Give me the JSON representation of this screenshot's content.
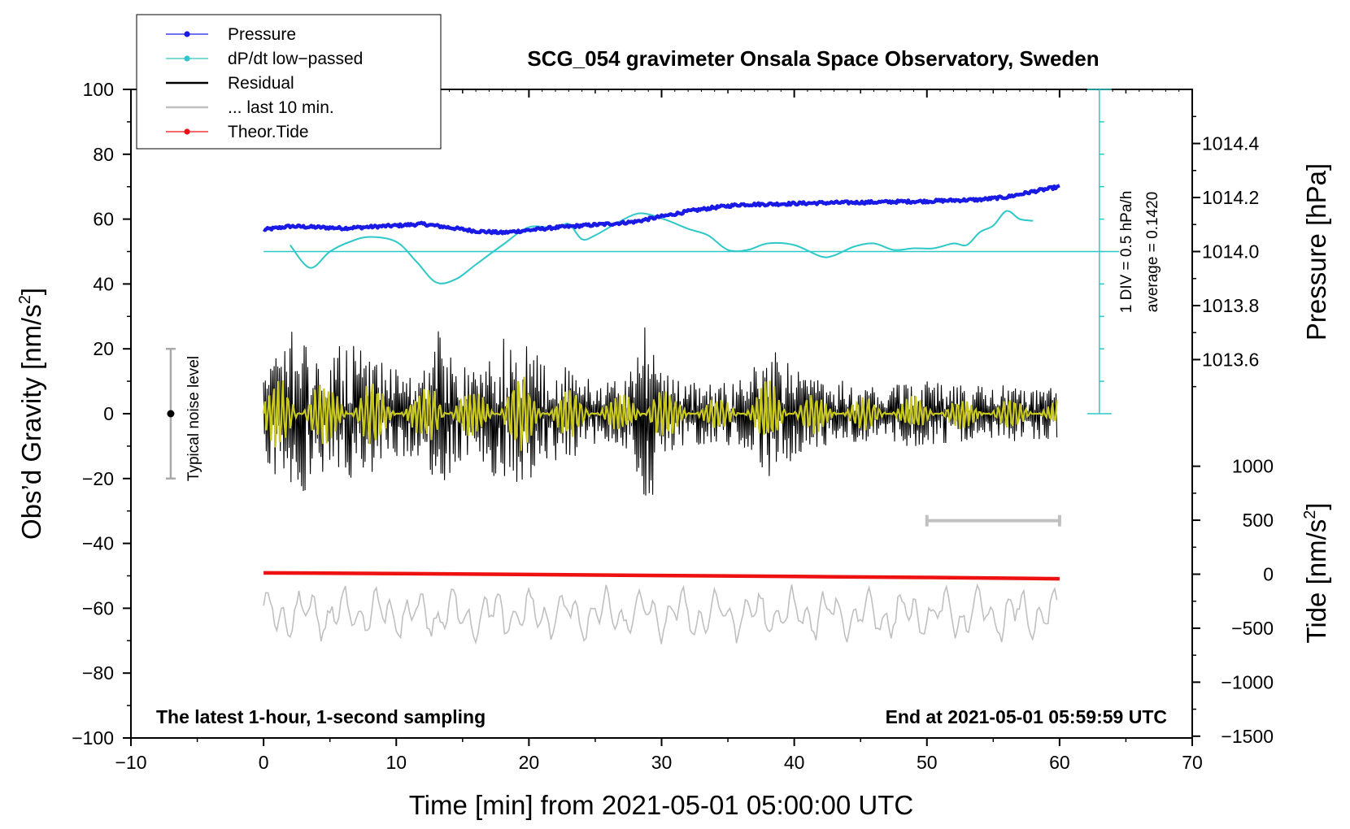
{
  "chart_data": {
    "type": "line",
    "title": "SCG_054 gravimeter Onsala Space Observatory, Sweden",
    "footer_left": "The latest 1-hour, 1-second sampling",
    "footer_right": "End at 2021-05-01 05:59:59 UTC",
    "xlabel": "Time [min] from 2021-05-01 05:00:00 UTC",
    "ylabel_left_main": "Obs’d Gravity [nm/s",
    "ylabel_left_sup": "2",
    "ylabel_left_close": "]",
    "ylabel_pressure": "Pressure [hPa]",
    "ylabel_tide_main": "Tide [nm/s",
    "ylabel_tide_sup": "2",
    "ylabel_tide_close": "]",
    "xlim": [
      -10,
      70
    ],
    "ylim": [
      -100,
      100
    ],
    "x_ticks": [
      "−10",
      "0",
      "10",
      "20",
      "30",
      "40",
      "50",
      "60",
      "70"
    ],
    "x_tick_values": [
      -10,
      0,
      10,
      20,
      30,
      40,
      50,
      60,
      70
    ],
    "y_ticks": [
      "100",
      "80",
      "60",
      "40",
      "20",
      "0",
      "−20",
      "−40",
      "−60",
      "−80",
      "−100"
    ],
    "y_tick_values": [
      100,
      80,
      60,
      40,
      20,
      0,
      -20,
      -40,
      -60,
      -80,
      -100
    ],
    "pressure_axis": {
      "ticks": [
        "1014.4",
        "1014.2",
        "1014.0",
        "1013.8",
        "1013.6"
      ],
      "values": [
        1014.4,
        1014.2,
        1014.0,
        1013.8,
        1013.6
      ],
      "gravity_at_1014": 50,
      "gravity_per_hPa": 83.3
    },
    "tide_axis": {
      "ticks": [
        "1000",
        "500",
        "0",
        "−500",
        "−1000",
        "−1500"
      ],
      "values": [
        1000,
        500,
        0,
        -500,
        -1000,
        -1500
      ],
      "gravity_at_zero": -49.5,
      "gravity_per_nms2": 0.0333
    },
    "dpdt_scale": {
      "label_div": "1 DIV = 0.5 hPa/h",
      "label_avg": "average = 0.1420",
      "x": 63,
      "y_top": 100,
      "y_bottom": 0,
      "baseline": 50
    },
    "noise_marker": {
      "label": "Typical noise level",
      "x": -7,
      "center": 0,
      "low": -20,
      "high": 20
    },
    "last10_bar": {
      "x_start": 50,
      "x_end": 60,
      "y": -33
    },
    "legend": [
      {
        "label": "Pressure",
        "color": "#1a1ae6",
        "style": "line-dot"
      },
      {
        "label": "dP/dt low−passed",
        "color": "#2ec8c8",
        "style": "line-dot"
      },
      {
        "label": "Residual",
        "color": "#000000",
        "style": "line"
      },
      {
        "label": "... last 10 min.",
        "color": "#c0c0c0",
        "style": "line"
      },
      {
        "label": "Theor.Tide",
        "color": "#ee1111",
        "style": "line-dot"
      }
    ],
    "series": [
      {
        "name": "Pressure",
        "color": "#1a1ae6",
        "x": [
          0,
          2,
          4,
          6,
          8,
          10,
          12,
          14,
          16,
          18,
          20,
          22,
          24,
          26,
          28,
          30,
          32,
          34,
          36,
          38,
          40,
          42,
          44,
          46,
          48,
          50,
          52,
          54,
          56,
          58,
          60
        ],
        "y": [
          56.7,
          57.8,
          57.5,
          57.2,
          57.6,
          58.0,
          58.5,
          57.4,
          56.3,
          55.8,
          56.6,
          57.4,
          58.0,
          58.5,
          59.2,
          60.8,
          62.4,
          63.6,
          64.5,
          64.6,
          64.8,
          65.0,
          65.1,
          65.2,
          65.4,
          65.5,
          65.8,
          66.0,
          66.8,
          68.5,
          70.0
        ]
      },
      {
        "name": "dP/dt low−passed",
        "color": "#2ec8c8",
        "x": [
          2,
          3.5,
          5,
          6.5,
          8,
          10,
          11.5,
          13,
          14.5,
          16,
          18,
          20,
          22,
          23,
          24,
          25,
          26.5,
          28,
          29,
          30.5,
          32,
          33.5,
          35,
          36.5,
          38,
          40,
          42,
          43,
          44.5,
          46,
          47.5,
          49,
          50.5,
          52,
          53,
          54,
          55,
          56,
          57,
          58
        ],
        "y": [
          52,
          45,
          50,
          53,
          54.5,
          53,
          47,
          40.5,
          41.5,
          46,
          52,
          57.5,
          57.2,
          58.5,
          53.8,
          55,
          58.5,
          61.5,
          61.5,
          59.5,
          57,
          55,
          50.5,
          50.5,
          52.5,
          52,
          48.5,
          48.8,
          51.5,
          52.5,
          50.5,
          51,
          51,
          52.5,
          52,
          56,
          58,
          62.5,
          60,
          59.5
        ]
      },
      {
        "name": "Residual",
        "color": "#000000",
        "x_start": 0,
        "x_end": 59.8,
        "samples": 900,
        "envelope_x": [
          0,
          1,
          2,
          2.7,
          3.5,
          5,
          6,
          8,
          10,
          12,
          13.3,
          14.5,
          16,
          17,
          18,
          20,
          21,
          23,
          25,
          27,
          28,
          29,
          30,
          32,
          34,
          36,
          37,
          38.5,
          40,
          42,
          44,
          46,
          48,
          50,
          52,
          54,
          56,
          58,
          60
        ],
        "envelope_y": [
          13,
          21,
          25,
          30,
          22,
          17,
          25,
          19,
          14,
          13,
          28,
          16,
          13,
          19,
          24,
          21,
          18,
          14,
          10,
          11,
          17,
          33,
          14,
          10,
          9,
          11,
          15,
          21,
          14,
          11,
          10,
          9,
          10,
          10,
          9,
          9,
          9,
          8,
          8
        ]
      },
      {
        "name": "Residual low-passed",
        "color": "#c8c81e",
        "x_start": 0,
        "x_end": 59.8,
        "samples": 540,
        "scale": 0.55
      },
      {
        "name": "... last 10 min.",
        "color": "#c0c0c0",
        "x_start": 0,
        "x_end": 59.8,
        "samples": 360,
        "center": -62,
        "amplitude": 6
      },
      {
        "name": "Theor.Tide",
        "color": "#ee1111",
        "x": [
          0,
          10,
          20,
          30,
          40,
          50,
          60
        ],
        "y": [
          -49.1,
          -49.3,
          -49.6,
          -49.9,
          -50.2,
          -50.5,
          -50.9
        ]
      }
    ]
  }
}
